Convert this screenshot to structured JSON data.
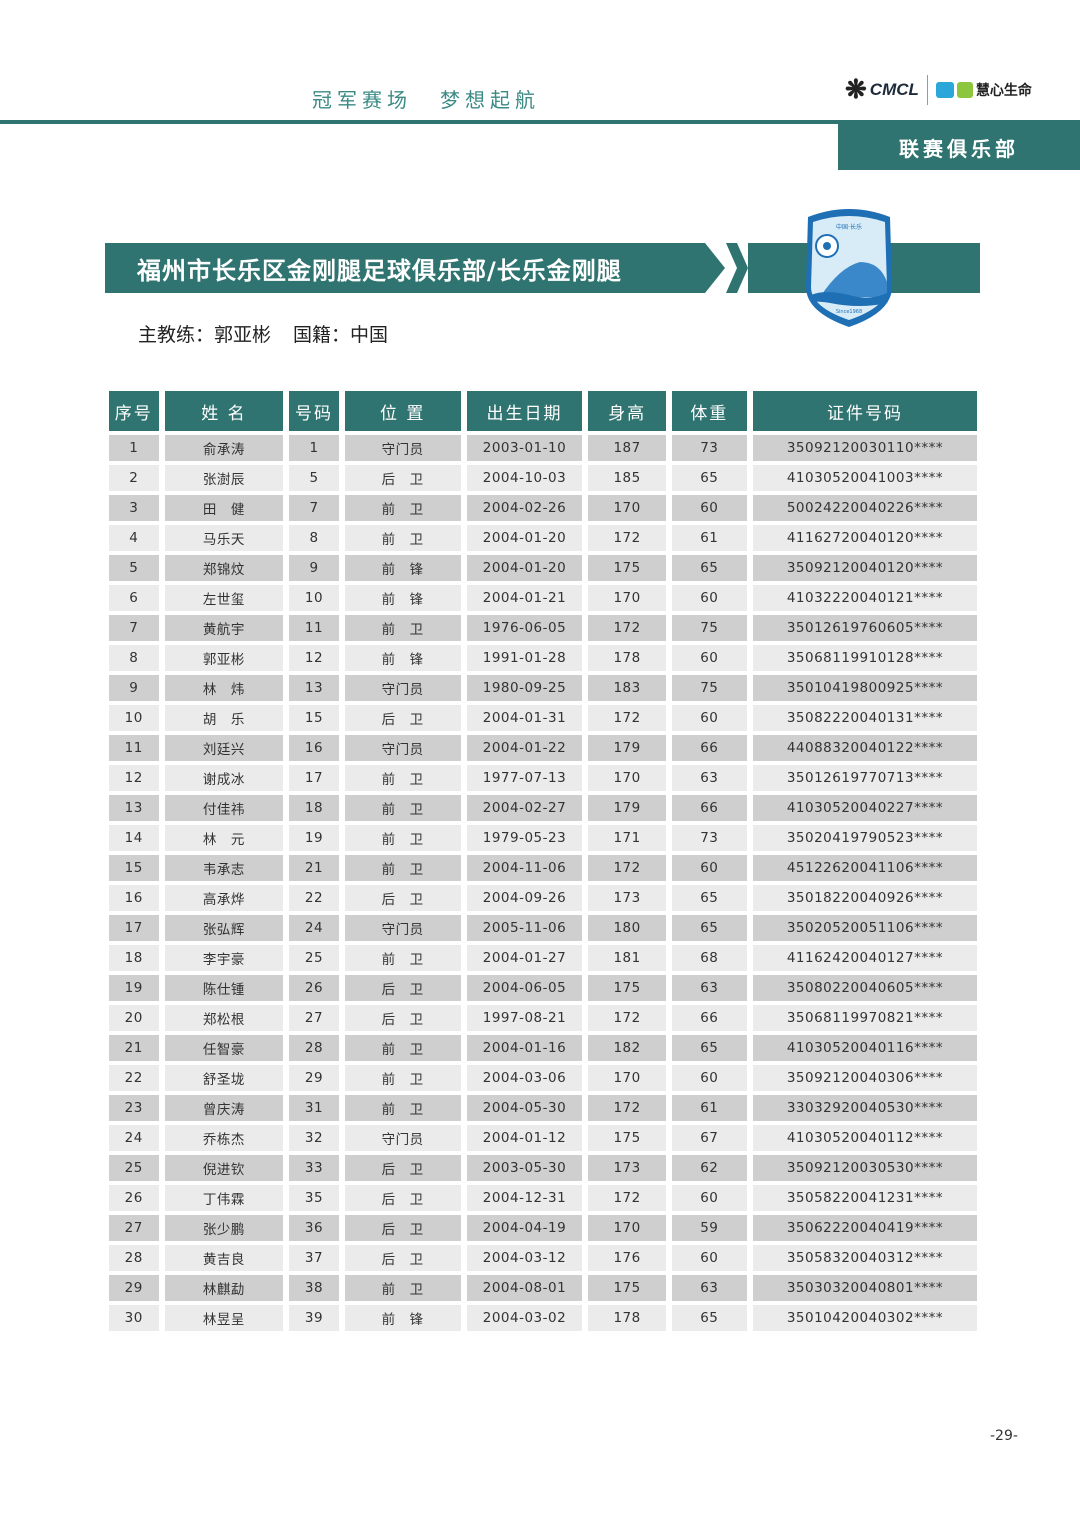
{
  "header": {
    "slogan": [
      "冠军赛场",
      "梦想起航"
    ],
    "logo_cmcl": "CMCL",
    "logo_huixin": "慧心生命",
    "section": "联赛俱乐部"
  },
  "club": {
    "title": "福州市长乐区金刚腿足球俱乐部/长乐金刚腿",
    "crest_top": "中国·长乐",
    "crest_bottom": "Since1968"
  },
  "coach": {
    "label": "主教练：郭亚彬",
    "nationality": "国籍：中国"
  },
  "colors": {
    "accent": "#2f7470",
    "row_dark": "#cfcfcf",
    "row_light": "#ebebeb"
  },
  "table": {
    "headers": [
      "序号",
      "姓 名",
      "号码",
      "位 置",
      "出生日期",
      "身高",
      "体重",
      "证件号码"
    ],
    "rows": [
      [
        "1",
        "俞承涛",
        "1",
        "守门员",
        "2003-01-10",
        "187",
        "73",
        "35092120030110****"
      ],
      [
        "2",
        "张澍辰",
        "5",
        "后　卫",
        "2004-10-03",
        "185",
        "65",
        "41030520041003****"
      ],
      [
        "3",
        "田　健",
        "7",
        "前　卫",
        "2004-02-26",
        "170",
        "60",
        "50024220040226****"
      ],
      [
        "4",
        "马乐天",
        "8",
        "前　卫",
        "2004-01-20",
        "172",
        "61",
        "41162720040120****"
      ],
      [
        "5",
        "郑锦炆",
        "9",
        "前　锋",
        "2004-01-20",
        "175",
        "65",
        "35092120040120****"
      ],
      [
        "6",
        "左世玺",
        "10",
        "前　锋",
        "2004-01-21",
        "170",
        "60",
        "41032220040121****"
      ],
      [
        "7",
        "黄航宇",
        "11",
        "前　卫",
        "1976-06-05",
        "172",
        "75",
        "35012619760605****"
      ],
      [
        "8",
        "郭亚彬",
        "12",
        "前　锋",
        "1991-01-28",
        "178",
        "60",
        "35068119910128****"
      ],
      [
        "9",
        "林　炜",
        "13",
        "守门员",
        "1980-09-25",
        "183",
        "75",
        "35010419800925****"
      ],
      [
        "10",
        "胡　乐",
        "15",
        "后　卫",
        "2004-01-31",
        "172",
        "60",
        "35082220040131****"
      ],
      [
        "11",
        "刘廷兴",
        "16",
        "守门员",
        "2004-01-22",
        "179",
        "66",
        "44088320040122****"
      ],
      [
        "12",
        "谢成冰",
        "17",
        "前　卫",
        "1977-07-13",
        "170",
        "63",
        "35012619770713****"
      ],
      [
        "13",
        "付佳祎",
        "18",
        "前　卫",
        "2004-02-27",
        "179",
        "66",
        "41030520040227****"
      ],
      [
        "14",
        "林　元",
        "19",
        "前　卫",
        "1979-05-23",
        "171",
        "73",
        "35020419790523****"
      ],
      [
        "15",
        "韦承志",
        "21",
        "前　卫",
        "2004-11-06",
        "172",
        "60",
        "45122620041106****"
      ],
      [
        "16",
        "高承烨",
        "22",
        "后　卫",
        "2004-09-26",
        "173",
        "65",
        "35018220040926****"
      ],
      [
        "17",
        "张弘辉",
        "24",
        "守门员",
        "2005-11-06",
        "180",
        "65",
        "35020520051106****"
      ],
      [
        "18",
        "李宇豪",
        "25",
        "前　卫",
        "2004-01-27",
        "181",
        "68",
        "41162420040127****"
      ],
      [
        "19",
        "陈仕锺",
        "26",
        "后　卫",
        "2004-06-05",
        "175",
        "63",
        "35080220040605****"
      ],
      [
        "20",
        "郑松根",
        "27",
        "后　卫",
        "1997-08-21",
        "172",
        "66",
        "35068119970821****"
      ],
      [
        "21",
        "任智豪",
        "28",
        "前　卫",
        "2004-01-16",
        "182",
        "65",
        "41030520040116****"
      ],
      [
        "22",
        "舒圣垅",
        "29",
        "前　卫",
        "2004-03-06",
        "170",
        "60",
        "35092120040306****"
      ],
      [
        "23",
        "曾庆涛",
        "31",
        "前　卫",
        "2004-05-30",
        "172",
        "61",
        "33032920040530****"
      ],
      [
        "24",
        "乔栋杰",
        "32",
        "守门员",
        "2004-01-12",
        "175",
        "67",
        "41030520040112****"
      ],
      [
        "25",
        "倪进钦",
        "33",
        "后　卫",
        "2003-05-30",
        "173",
        "62",
        "35092120030530****"
      ],
      [
        "26",
        "丁伟霖",
        "35",
        "后　卫",
        "2004-12-31",
        "172",
        "60",
        "35058220041231****"
      ],
      [
        "27",
        "张少鹏",
        "36",
        "后　卫",
        "2004-04-19",
        "170",
        "59",
        "35062220040419****"
      ],
      [
        "28",
        "黄吉良",
        "37",
        "后　卫",
        "2004-03-12",
        "176",
        "60",
        "35058320040312****"
      ],
      [
        "29",
        "林麒勐",
        "38",
        "前　卫",
        "2004-08-01",
        "175",
        "63",
        "35030320040801****"
      ],
      [
        "30",
        "林昱呈",
        "39",
        "前　锋",
        "2004-03-02",
        "178",
        "65",
        "35010420040302****"
      ]
    ]
  },
  "page_number": "-29-"
}
